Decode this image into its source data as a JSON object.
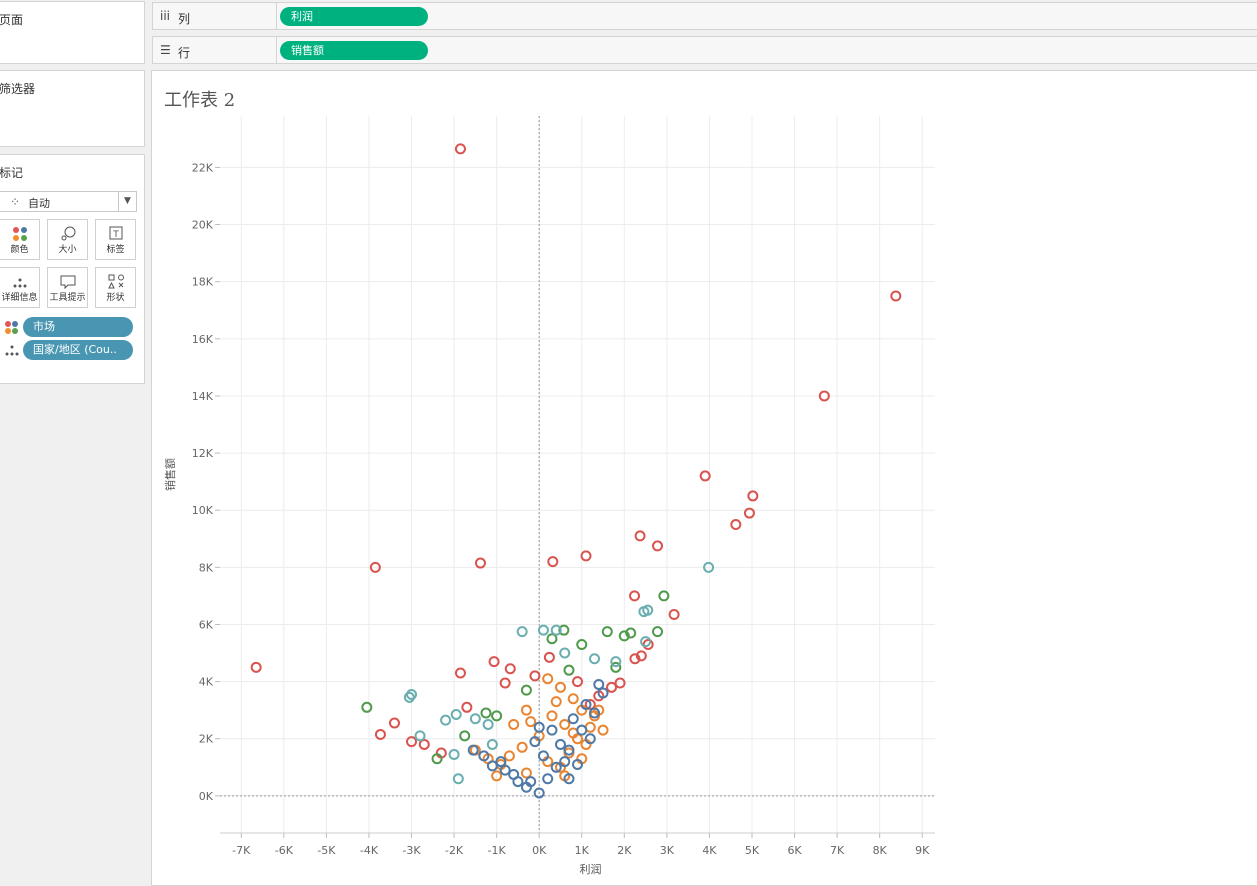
{
  "sidebar": {
    "pages_title": "页面",
    "filters_title": "筛选器",
    "marks_title": "标记",
    "mark_type": "自动",
    "buttons": [
      {
        "label": "颜色",
        "icon": "color-icon"
      },
      {
        "label": "大小",
        "icon": "size-icon"
      },
      {
        "label": "标签",
        "icon": "label-icon"
      },
      {
        "label": "详细信息",
        "icon": "detail-icon"
      },
      {
        "label": "工具提示",
        "icon": "tooltip-icon"
      },
      {
        "label": "形状",
        "icon": "shape-icon"
      }
    ],
    "pills": [
      {
        "label": "市场",
        "icon": "color-icon"
      },
      {
        "label": "国家/地区 (Cou..",
        "icon": "detail-icon"
      }
    ]
  },
  "shelves": {
    "columns": {
      "label": "列",
      "pill": "利润"
    },
    "rows": {
      "label": "行",
      "pill": "销售额"
    }
  },
  "sheet": {
    "title": "工作表 2"
  },
  "colors": {
    "accent_pill": "#00b180",
    "dimension_pill": "#4996b2"
  },
  "chart_data": {
    "type": "scatter",
    "xlabel": "利润",
    "ylabel": "销售额",
    "xlim": [
      -7500,
      9300
    ],
    "ylim": [
      -1300,
      23800
    ],
    "x_ticks": [
      -7000,
      -6000,
      -5000,
      -4000,
      -3000,
      -2000,
      -1000,
      0,
      1000,
      2000,
      3000,
      4000,
      5000,
      6000,
      7000,
      8000,
      9000
    ],
    "x_tick_labels": [
      "-7K",
      "-6K",
      "-5K",
      "-4K",
      "-3K",
      "-2K",
      "-1K",
      "0K",
      "1K",
      "2K",
      "3K",
      "4K",
      "5K",
      "6K",
      "7K",
      "8K",
      "9K"
    ],
    "y_ticks": [
      0,
      2000,
      4000,
      6000,
      8000,
      10000,
      12000,
      14000,
      16000,
      18000,
      20000,
      22000
    ],
    "y_tick_labels": [
      "0K",
      "2K",
      "4K",
      "6K",
      "8K",
      "10K",
      "12K",
      "14K",
      "16K",
      "18K",
      "20K",
      "22K"
    ],
    "marker": "hollow-circle",
    "series": [
      {
        "color": "#d9534f",
        "points": [
          [
            -1850,
            22650
          ],
          [
            8380,
            17500
          ],
          [
            6700,
            14000
          ],
          [
            3900,
            11200
          ],
          [
            5020,
            10500
          ],
          [
            4940,
            9900
          ],
          [
            4620,
            9500
          ],
          [
            2370,
            9100
          ],
          [
            2780,
            8750
          ],
          [
            1100,
            8400
          ],
          [
            -1380,
            8150
          ],
          [
            -3850,
            8000
          ],
          [
            320,
            8200
          ],
          [
            -6650,
            4500
          ],
          [
            2240,
            7000
          ],
          [
            3170,
            6350
          ],
          [
            2560,
            5300
          ],
          [
            2400,
            4900
          ],
          [
            2250,
            4800
          ],
          [
            -1850,
            4300
          ],
          [
            -1060,
            4700
          ],
          [
            -680,
            4450
          ],
          [
            -1700,
            3100
          ],
          [
            -3400,
            2550
          ],
          [
            -3730,
            2150
          ],
          [
            -3000,
            1900
          ],
          [
            -2700,
            1800
          ],
          [
            -2300,
            1500
          ],
          [
            -800,
            3950
          ],
          [
            1900,
            3950
          ],
          [
            1700,
            3800
          ],
          [
            1400,
            3500
          ],
          [
            240,
            4850
          ],
          [
            -100,
            4200
          ],
          [
            900,
            4000
          ],
          [
            1200,
            3200
          ]
        ]
      },
      {
        "color": "#4e9a4a",
        "points": [
          [
            -4050,
            3100
          ],
          [
            -2400,
            1300
          ],
          [
            2930,
            7000
          ],
          [
            2780,
            5750
          ],
          [
            2150,
            5700
          ],
          [
            1600,
            5750
          ],
          [
            580,
            5800
          ],
          [
            1000,
            5300
          ],
          [
            -1750,
            2100
          ],
          [
            -1250,
            2900
          ],
          [
            -300,
            3700
          ],
          [
            300,
            5500
          ],
          [
            2000,
            5600
          ],
          [
            1800,
            4500
          ],
          [
            -1000,
            2800
          ],
          [
            700,
            4400
          ]
        ]
      },
      {
        "color": "#6aaeb0",
        "points": [
          [
            3980,
            8000
          ],
          [
            2460,
            6450
          ],
          [
            2550,
            6500
          ],
          [
            -3050,
            3450
          ],
          [
            -3000,
            3550
          ],
          [
            -2800,
            2100
          ],
          [
            -2200,
            2650
          ],
          [
            -1950,
            2850
          ],
          [
            -1500,
            2700
          ],
          [
            -1900,
            600
          ],
          [
            -400,
            5750
          ],
          [
            100,
            5800
          ],
          [
            400,
            5800
          ],
          [
            1800,
            4700
          ],
          [
            -2000,
            1450
          ],
          [
            -1100,
            1800
          ],
          [
            -1200,
            2500
          ],
          [
            600,
            5000
          ],
          [
            1300,
            4800
          ],
          [
            2500,
            5400
          ]
        ]
      },
      {
        "color": "#e98532",
        "points": [
          [
            -1500,
            1600
          ],
          [
            -1200,
            1300
          ],
          [
            -900,
            1100
          ],
          [
            -600,
            2500
          ],
          [
            -300,
            3000
          ],
          [
            200,
            4100
          ],
          [
            500,
            3800
          ],
          [
            800,
            3400
          ],
          [
            1000,
            3000
          ],
          [
            1300,
            2800
          ],
          [
            1500,
            2300
          ],
          [
            -700,
            1400
          ],
          [
            -400,
            1700
          ],
          [
            0,
            2100
          ],
          [
            300,
            2800
          ],
          [
            600,
            2500
          ],
          [
            900,
            2000
          ],
          [
            1100,
            1800
          ],
          [
            -300,
            800
          ],
          [
            200,
            1200
          ],
          [
            500,
            1000
          ],
          [
            700,
            1500
          ],
          [
            1200,
            2400
          ],
          [
            -1000,
            700
          ],
          [
            400,
            3300
          ],
          [
            -200,
            2600
          ],
          [
            1400,
            3000
          ],
          [
            800,
            2200
          ],
          [
            1000,
            1300
          ],
          [
            600,
            700
          ]
        ]
      },
      {
        "color": "#4e79a7",
        "points": [
          [
            -1550,
            1600
          ],
          [
            -1100,
            1050
          ],
          [
            -800,
            900
          ],
          [
            -500,
            500
          ],
          [
            -300,
            300
          ],
          [
            0,
            100
          ],
          [
            200,
            600
          ],
          [
            400,
            1000
          ],
          [
            700,
            1600
          ],
          [
            1000,
            2300
          ],
          [
            1300,
            2900
          ],
          [
            1500,
            3600
          ],
          [
            1400,
            3900
          ],
          [
            -900,
            1200
          ],
          [
            -600,
            750
          ],
          [
            100,
            1400
          ],
          [
            500,
            1800
          ],
          [
            800,
            2700
          ],
          [
            1200,
            2000
          ],
          [
            -100,
            1900
          ],
          [
            300,
            2300
          ],
          [
            600,
            1200
          ],
          [
            900,
            1100
          ],
          [
            -200,
            500
          ],
          [
            0,
            2400
          ],
          [
            1100,
            3200
          ],
          [
            700,
            600
          ],
          [
            -1300,
            1400
          ]
        ]
      }
    ]
  }
}
